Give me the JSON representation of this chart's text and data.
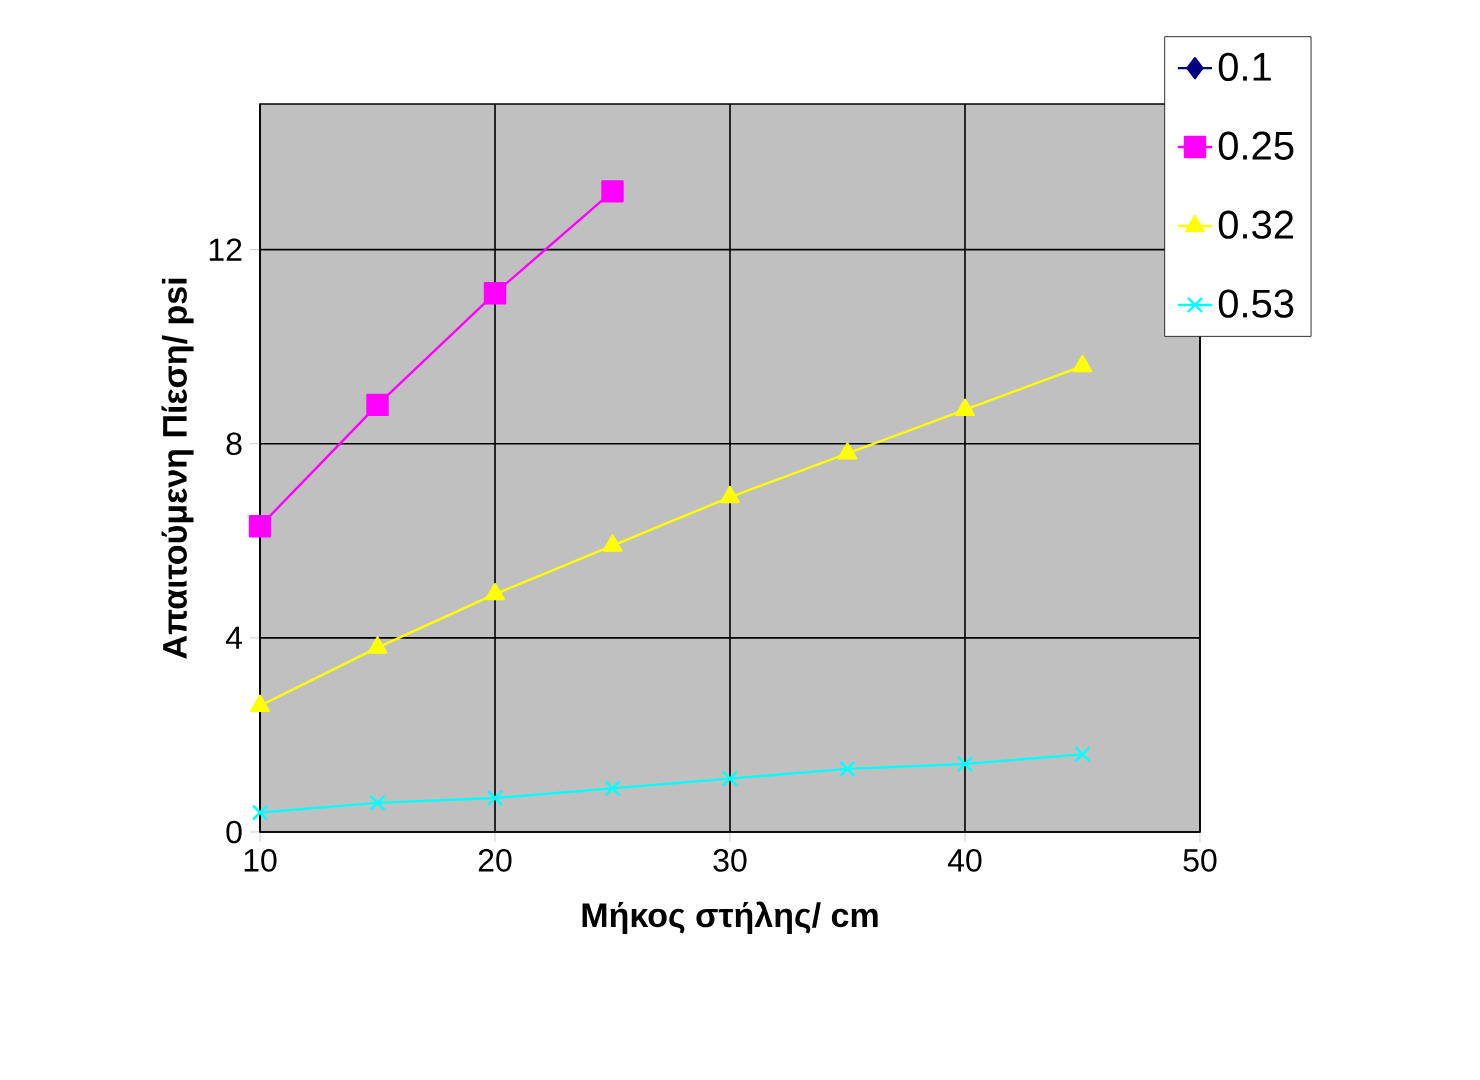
{
  "chart_data": {
    "type": "line",
    "xlabel": "Μήκος στήλης/ cm",
    "ylabel": "Απαιτούμενη Πίεση/ psi",
    "x": [
      10,
      15,
      20,
      25,
      30,
      35,
      40,
      45
    ],
    "series": [
      {
        "name": "0.1",
        "color": "#000080",
        "marker": "diamond",
        "values": [
          null,
          null,
          null,
          null,
          null,
          null,
          null,
          null
        ]
      },
      {
        "name": "0.25",
        "color": "#ff00ff",
        "marker": "square",
        "values": [
          6.3,
          8.8,
          11.1,
          13.2,
          null,
          null,
          null,
          null
        ]
      },
      {
        "name": "0.32",
        "color": "#ffff00",
        "marker": "triangle",
        "values": [
          2.6,
          3.8,
          4.9,
          5.9,
          6.9,
          7.8,
          8.7,
          9.6
        ]
      },
      {
        "name": "0.53",
        "color": "#00ffff",
        "marker": "cross",
        "values": [
          0.4,
          0.6,
          0.7,
          0.9,
          1.1,
          1.3,
          1.4,
          1.6
        ]
      }
    ],
    "xlim": [
      10,
      50
    ],
    "ylim": [
      0,
      15
    ],
    "xticks": [
      10,
      20,
      30,
      40,
      50
    ],
    "yticks": [
      0,
      4,
      8,
      12
    ],
    "grid": true,
    "legend": "top right"
  }
}
